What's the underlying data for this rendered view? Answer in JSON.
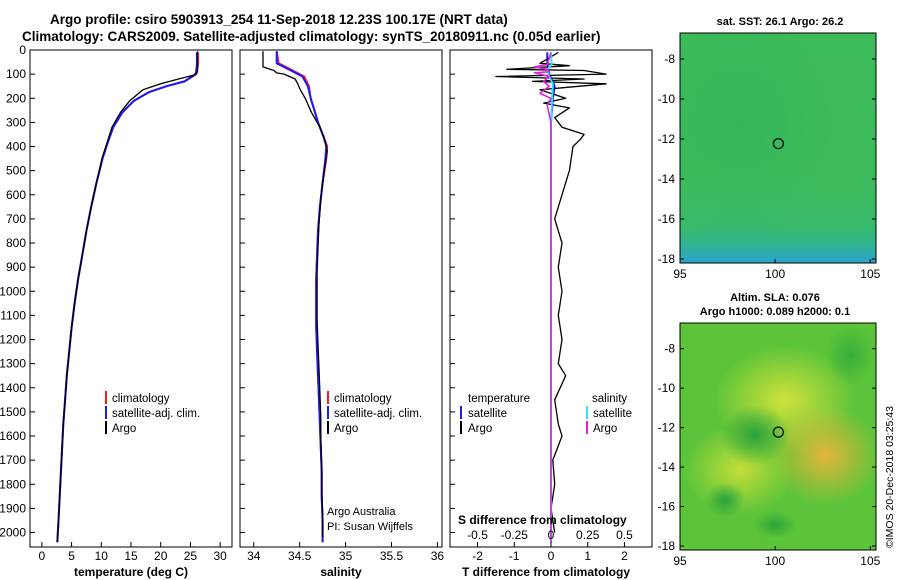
{
  "title": {
    "line1": "Argo profile: csiro 5903913_254 11-Sep-2018 12.23S 100.17E (NRT data)",
    "line2": "Climatology: CARS2009. Satellite-adjusted climatology: synTS_20180911.nc (0.05d earlier)"
  },
  "depth_ticks": [
    "0",
    "100",
    "200",
    "300",
    "400",
    "500",
    "600",
    "700",
    "800",
    "900",
    "1000",
    "1100",
    "1200",
    "1300",
    "1400",
    "1500",
    "1600",
    "1700",
    "1800",
    "1900",
    "2000"
  ],
  "colors": {
    "climatology": "#ff1a1a",
    "satellite": "#1a1aff",
    "argo": "#000000",
    "sal_satellite": "#33e0ff",
    "sal_argo": "#e020e0"
  },
  "panel_temperature": {
    "xlabel": "temperature (deg C)",
    "xticks": [
      "0",
      "5",
      "10",
      "15",
      "20",
      "25",
      "30"
    ],
    "legend": [
      "climatology",
      "satellite-adj. clim.",
      "Argo"
    ]
  },
  "panel_salinity": {
    "xlabel": "salinity",
    "xticks": [
      "34",
      "34.5",
      "35",
      "35.5",
      "36"
    ],
    "legend": [
      "climatology",
      "satellite-adj. clim.",
      "Argo"
    ],
    "note1": "Argo Australia",
    "note2": "PI: Susan Wijffels"
  },
  "panel_difference": {
    "xlabel": "T difference from climatology",
    "xticks": [
      "-2",
      "-1",
      "0",
      "1",
      "2"
    ],
    "top_xlabel": "S difference from climatology",
    "top_xticks": [
      "-0.5",
      "-0.25",
      "0",
      "0.25",
      "0.5"
    ],
    "legend_t_head": "temperature",
    "legend_t": [
      "satellite",
      "Argo"
    ],
    "legend_s_head": "salinity",
    "legend_s": [
      "satellite",
      "Argo"
    ]
  },
  "map_sst": {
    "title": "sat. SST: 26.1 Argo: 26.2",
    "xticks": [
      "95",
      "100",
      "105"
    ],
    "yticks": [
      "-8",
      "-10",
      "-12",
      "-14",
      "-16",
      "-18"
    ]
  },
  "map_sla": {
    "title1": "Altim. SLA: 0.076",
    "title2": "Argo h1000: 0.089 h2000: 0.1",
    "xticks": [
      "95",
      "100",
      "105"
    ],
    "yticks": [
      "-8",
      "-10",
      "-12",
      "-14",
      "-16",
      "-18"
    ]
  },
  "side_label": "©IMOS 20-Dec-2018 03:25:43",
  "chart_data": [
    {
      "type": "line",
      "xlabel": "temperature (deg C)",
      "ylabel": "",
      "xlim": [
        -2,
        32
      ],
      "ylim": [
        2060,
        0
      ],
      "y_axis": "depth (inverted)",
      "series": [
        {
          "name": "climatology",
          "points": [
            [
              26.3,
              10
            ],
            [
              26.3,
              60
            ],
            [
              26,
              100
            ],
            [
              24,
              130
            ],
            [
              21,
              150
            ],
            [
              18,
              175
            ],
            [
              15.5,
              210
            ],
            [
              13.5,
              260
            ],
            [
              12,
              320
            ],
            [
              11,
              390
            ],
            [
              10.2,
              450
            ],
            [
              9.2,
              550
            ],
            [
              8.3,
              650
            ],
            [
              7.5,
              750
            ],
            [
              6.8,
              850
            ],
            [
              6.1,
              950
            ],
            [
              5.5,
              1050
            ],
            [
              5,
              1150
            ],
            [
              4.6,
              1250
            ],
            [
              4.2,
              1350
            ],
            [
              3.9,
              1450
            ],
            [
              3.6,
              1550
            ],
            [
              3.4,
              1650
            ],
            [
              3.2,
              1750
            ],
            [
              3,
              1850
            ],
            [
              2.8,
              1950
            ],
            [
              2.6,
              2040
            ]
          ]
        },
        {
          "name": "satellite-adj. clim.",
          "points": [
            [
              26.1,
              10
            ],
            [
              26.1,
              60
            ],
            [
              25.9,
              100
            ],
            [
              24,
              130
            ],
            [
              21,
              150
            ],
            [
              18,
              175
            ],
            [
              15.5,
              210
            ],
            [
              13.5,
              260
            ],
            [
              12,
              320
            ],
            [
              11,
              390
            ],
            [
              10.2,
              450
            ],
            [
              9.2,
              550
            ],
            [
              8.3,
              650
            ],
            [
              7.5,
              750
            ],
            [
              6.8,
              850
            ],
            [
              6.1,
              950
            ],
            [
              5.5,
              1050
            ],
            [
              5,
              1150
            ],
            [
              4.6,
              1250
            ],
            [
              4.2,
              1350
            ],
            [
              3.9,
              1450
            ],
            [
              3.6,
              1550
            ],
            [
              3.4,
              1650
            ],
            [
              3.2,
              1750
            ],
            [
              3,
              1850
            ],
            [
              2.8,
              1950
            ],
            [
              2.6,
              2040
            ]
          ]
        },
        {
          "name": "Argo",
          "points": [
            [
              26.2,
              5
            ],
            [
              26.2,
              90
            ],
            [
              25.5,
              105
            ],
            [
              23,
              120
            ],
            [
              20,
              140
            ],
            [
              17,
              165
            ],
            [
              14.8,
              210
            ],
            [
              13.2,
              260
            ],
            [
              11.8,
              320
            ],
            [
              10.9,
              390
            ],
            [
              10.1,
              450
            ],
            [
              9.2,
              550
            ],
            [
              8.3,
              650
            ],
            [
              7.5,
              750
            ],
            [
              6.8,
              850
            ],
            [
              6.1,
              950
            ],
            [
              5.5,
              1050
            ],
            [
              5,
              1150
            ],
            [
              4.6,
              1250
            ],
            [
              4.2,
              1350
            ],
            [
              3.9,
              1450
            ],
            [
              3.6,
              1550
            ],
            [
              3.4,
              1650
            ],
            [
              3.2,
              1750
            ],
            [
              3,
              1850
            ],
            [
              2.8,
              1950
            ],
            [
              2.6,
              2040
            ]
          ]
        }
      ]
    },
    {
      "type": "line",
      "xlabel": "salinity",
      "ylabel": "",
      "xlim": [
        33.85,
        36.05
      ],
      "ylim": [
        2060,
        0
      ],
      "y_axis": "depth (inverted)",
      "series": [
        {
          "name": "climatology",
          "points": [
            [
              34.25,
              5
            ],
            [
              34.27,
              55
            ],
            [
              34.4,
              80
            ],
            [
              34.55,
              110
            ],
            [
              34.6,
              150
            ],
            [
              34.62,
              200
            ],
            [
              34.66,
              250
            ],
            [
              34.7,
              300
            ],
            [
              34.76,
              360
            ],
            [
              34.8,
              400
            ],
            [
              34.79,
              450
            ],
            [
              34.75,
              550
            ],
            [
              34.72,
              650
            ],
            [
              34.7,
              750
            ],
            [
              34.69,
              850
            ],
            [
              34.68,
              950
            ],
            [
              34.68,
              1050
            ],
            [
              34.68,
              1150
            ],
            [
              34.69,
              1250
            ],
            [
              34.7,
              1350
            ],
            [
              34.71,
              1450
            ],
            [
              34.72,
              1550
            ],
            [
              34.73,
              1650
            ],
            [
              34.74,
              1750
            ],
            [
              34.74,
              1850
            ],
            [
              34.75,
              1950
            ],
            [
              34.75,
              2040
            ]
          ]
        },
        {
          "name": "satellite-adj. clim.",
          "points": [
            [
              34.25,
              5
            ],
            [
              34.25,
              55
            ],
            [
              34.38,
              80
            ],
            [
              34.53,
              110
            ],
            [
              34.59,
              150
            ],
            [
              34.62,
              200
            ],
            [
              34.66,
              250
            ],
            [
              34.7,
              300
            ],
            [
              34.76,
              360
            ],
            [
              34.79,
              400
            ],
            [
              34.78,
              450
            ],
            [
              34.75,
              550
            ],
            [
              34.72,
              650
            ],
            [
              34.7,
              750
            ],
            [
              34.69,
              850
            ],
            [
              34.68,
              950
            ],
            [
              34.68,
              1050
            ],
            [
              34.68,
              1150
            ],
            [
              34.69,
              1250
            ],
            [
              34.7,
              1350
            ],
            [
              34.71,
              1450
            ],
            [
              34.72,
              1550
            ],
            [
              34.73,
              1650
            ],
            [
              34.74,
              1750
            ],
            [
              34.74,
              1850
            ],
            [
              34.75,
              1950
            ],
            [
              34.75,
              2040
            ]
          ]
        },
        {
          "name": "Argo",
          "points": [
            [
              34.1,
              5
            ],
            [
              34.1,
              70
            ],
            [
              34.22,
              85
            ],
            [
              34.25,
              95
            ],
            [
              34.33,
              100
            ],
            [
              34.45,
              120
            ],
            [
              34.48,
              140
            ],
            [
              34.5,
              160
            ],
            [
              34.56,
              200
            ],
            [
              34.63,
              260
            ],
            [
              34.72,
              320
            ],
            [
              34.78,
              380
            ],
            [
              34.8,
              420
            ],
            [
              34.76,
              520
            ],
            [
              34.73,
              620
            ],
            [
              34.71,
              720
            ],
            [
              34.7,
              820
            ],
            [
              34.69,
              920
            ],
            [
              34.69,
              1020
            ],
            [
              34.69,
              1120
            ],
            [
              34.7,
              1220
            ],
            [
              34.71,
              1320
            ],
            [
              34.72,
              1420
            ],
            [
              34.73,
              1520
            ],
            [
              34.73,
              1620
            ],
            [
              34.74,
              1720
            ],
            [
              34.74,
              1820
            ],
            [
              34.75,
              1920
            ],
            [
              34.75,
              2020
            ]
          ]
        }
      ]
    },
    {
      "type": "line",
      "xlabel": "T difference from climatology",
      "ylabel": "",
      "xlim": [
        -2.75,
        2.75
      ],
      "ylim": [
        2060,
        0
      ],
      "y_axis": "depth (inverted)",
      "series": [
        {
          "name": "temperature satellite",
          "points": [
            [
              -0.1,
              10
            ],
            [
              -0.1,
              60
            ],
            [
              -0.05,
              100
            ],
            [
              0.1,
              150
            ],
            [
              0.05,
              200
            ],
            [
              0,
              300
            ],
            [
              0,
              500
            ],
            [
              0,
              2040
            ]
          ]
        },
        {
          "name": "temperature Argo",
          "points": [
            [
              0.2,
              10
            ],
            [
              -0.3,
              55
            ],
            [
              0.5,
              65
            ],
            [
              -1.2,
              80
            ],
            [
              0.9,
              85
            ],
            [
              1.5,
              100
            ],
            [
              -1.5,
              110
            ],
            [
              0.9,
              120
            ],
            [
              -0.5,
              130
            ],
            [
              1.5,
              140
            ],
            [
              -0.3,
              165
            ],
            [
              0.4,
              200
            ],
            [
              -0.2,
              220
            ],
            [
              0.5,
              240
            ],
            [
              0.1,
              280
            ],
            [
              0.3,
              320
            ],
            [
              0.9,
              350
            ],
            [
              0.8,
              370
            ],
            [
              0.6,
              400
            ],
            [
              0.5,
              500
            ],
            [
              0.3,
              600
            ],
            [
              0.1,
              700
            ],
            [
              0.3,
              800
            ],
            [
              0.2,
              900
            ],
            [
              0.3,
              1000
            ],
            [
              0.2,
              1100
            ],
            [
              0.3,
              1200
            ],
            [
              0.2,
              1300
            ],
            [
              0.4,
              1350
            ],
            [
              0.1,
              1450
            ],
            [
              0.2,
              1550
            ],
            [
              0.3,
              1600
            ],
            [
              0.05,
              1700
            ],
            [
              0.1,
              1800
            ],
            [
              0,
              1900
            ],
            [
              0.1,
              2000
            ]
          ]
        },
        {
          "name": "salinity satellite",
          "points": [
            [
              0,
              10
            ],
            [
              0.02,
              60
            ],
            [
              -0.1,
              80
            ],
            [
              -0.05,
              110
            ],
            [
              0.05,
              140
            ],
            [
              0.03,
              200
            ],
            [
              0,
              300
            ],
            [
              0,
              2040
            ]
          ]
        },
        {
          "name": "salinity Argo",
          "points": [
            [
              0,
              10
            ],
            [
              -0.1,
              60
            ],
            [
              -0.45,
              70
            ],
            [
              -0.1,
              80
            ],
            [
              -0.05,
              90
            ],
            [
              -0.45,
              95
            ],
            [
              -0.3,
              100
            ],
            [
              -0.05,
              110
            ],
            [
              -0.2,
              130
            ],
            [
              -0.05,
              150
            ],
            [
              -0.3,
              180
            ],
            [
              0,
              200
            ],
            [
              -0.1,
              230
            ],
            [
              0,
              300
            ],
            [
              0,
              2040
            ]
          ]
        }
      ]
    },
    {
      "type": "heatmap",
      "title": "sat. SST: 26.1 Argo: 26.2",
      "xlim": [
        95,
        105.3
      ],
      "ylim": [
        -18.2,
        -6.7
      ],
      "marker": {
        "lon": 100.17,
        "lat": -12.23
      }
    },
    {
      "type": "heatmap",
      "title": "Altim. SLA: 0.076 Argo h1000: 0.089 h2000: 0.1",
      "xlim": [
        95,
        105.3
      ],
      "ylim": [
        -18.2,
        -6.7
      ],
      "marker": {
        "lon": 100.17,
        "lat": -12.23
      }
    }
  ]
}
